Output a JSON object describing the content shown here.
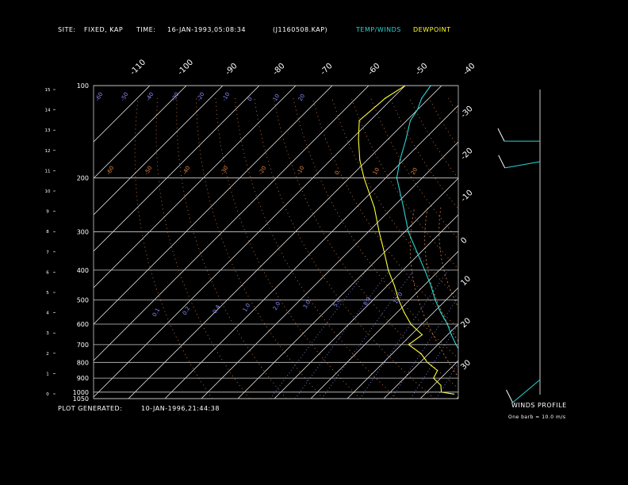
{
  "header": {
    "site_label": "SITE:",
    "site_value": "FIXED, KAP",
    "time_label": "TIME:",
    "time_value": "16-JAN-1993,05:08:34",
    "file_value": "(J1160508.KAP)",
    "temp_legend": "TEMP/WINDS",
    "dew_legend": "DEWPOINT"
  },
  "footer": {
    "generated_label": "PLOT GENERATED:",
    "generated_value": "10-JAN-1996,21:44:38",
    "winds_title": "WINDS PROFILE",
    "winds_note": "One barb = 10.0 m/s"
  },
  "colors": {
    "background": "#000000",
    "temperature": "#2ad4d4",
    "dewpoint": "#ffff33",
    "isobar": "#cccccc",
    "isotherm": "#ffffff",
    "dry_adiabat": "#e08040",
    "mixing_ratio": "#8888ff",
    "text": "#ffffff"
  },
  "chart_data": {
    "type": "skew-t",
    "pressure_levels": [
      100,
      200,
      300,
      400,
      500,
      600,
      700,
      800,
      900,
      1000,
      1050
    ],
    "height_km_ticks": [
      "15",
      "14",
      "13",
      "12",
      "11",
      "10",
      "9",
      "8",
      "7",
      "6",
      "5",
      "4",
      "3",
      "2",
      "1",
      "0"
    ],
    "isotherm_top_labels": [
      "-110",
      "-100",
      "-90",
      "-80",
      "-70",
      "-60",
      "-50",
      "-40"
    ],
    "isotherm_right_labels": [
      "-30",
      "-20",
      "-10",
      "0",
      "10",
      "20",
      "30"
    ],
    "mixing_ratio_labels": [
      "0.1",
      "0.2",
      "0.4",
      "1.0",
      "2.0",
      "3.0",
      "5.0",
      "8.0",
      "12.0"
    ],
    "adiabat_labels": [
      "-60",
      "-50",
      "-40",
      "-30",
      "-20",
      "-10",
      "0",
      "10",
      "20",
      "30",
      "40"
    ],
    "pressure_label_pairs": [
      "100",
      "200",
      "300",
      "400",
      "500",
      "600",
      "700",
      "800",
      "900",
      "1000",
      "1050"
    ],
    "temperature": {
      "name": "TEMP/WINDS",
      "points": [
        {
          "p": 100,
          "t": -83
        },
        {
          "p": 110,
          "t": -82
        },
        {
          "p": 120,
          "t": -80
        },
        {
          "p": 130,
          "t": -79
        },
        {
          "p": 150,
          "t": -75
        },
        {
          "p": 175,
          "t": -71
        },
        {
          "p": 200,
          "t": -67
        },
        {
          "p": 250,
          "t": -57
        },
        {
          "p": 300,
          "t": -49
        },
        {
          "p": 350,
          "t": -41
        },
        {
          "p": 400,
          "t": -34
        },
        {
          "p": 450,
          "t": -28
        },
        {
          "p": 500,
          "t": -23
        },
        {
          "p": 550,
          "t": -18
        },
        {
          "p": 600,
          "t": -13
        },
        {
          "p": 650,
          "t": -9
        },
        {
          "p": 700,
          "t": -5
        },
        {
          "p": 750,
          "t": -1
        },
        {
          "p": 800,
          "t": 2
        },
        {
          "p": 850,
          "t": 5
        },
        {
          "p": 900,
          "t": 8
        },
        {
          "p": 950,
          "t": 11
        },
        {
          "p": 1000,
          "t": 14
        },
        {
          "p": 1015,
          "t": 16
        }
      ]
    },
    "dewpoint": {
      "name": "DEWPOINT",
      "points": [
        {
          "p": 100,
          "t": -90
        },
        {
          "p": 110,
          "t": -92
        },
        {
          "p": 130,
          "t": -93
        },
        {
          "p": 150,
          "t": -88
        },
        {
          "p": 175,
          "t": -82
        },
        {
          "p": 200,
          "t": -76
        },
        {
          "p": 250,
          "t": -65
        },
        {
          "p": 300,
          "t": -57
        },
        {
          "p": 350,
          "t": -50
        },
        {
          "p": 400,
          "t": -44
        },
        {
          "p": 450,
          "t": -38
        },
        {
          "p": 500,
          "t": -33
        },
        {
          "p": 550,
          "t": -28
        },
        {
          "p": 600,
          "t": -23
        },
        {
          "p": 650,
          "t": -17
        },
        {
          "p": 700,
          "t": -18
        },
        {
          "p": 750,
          "t": -12
        },
        {
          "p": 800,
          "t": -8
        },
        {
          "p": 850,
          "t": -3
        },
        {
          "p": 900,
          "t": -2
        },
        {
          "p": 950,
          "t": 2
        },
        {
          "p": 1000,
          "t": 4
        },
        {
          "p": 1015,
          "t": 8
        }
      ]
    },
    "winds": [
      {
        "p": 150,
        "speed_ms": 20,
        "dir": 270
      },
      {
        "p": 175,
        "speed_ms": 20,
        "dir": 260
      },
      {
        "p": 900,
        "speed_ms": 10,
        "dir": 230
      }
    ]
  }
}
